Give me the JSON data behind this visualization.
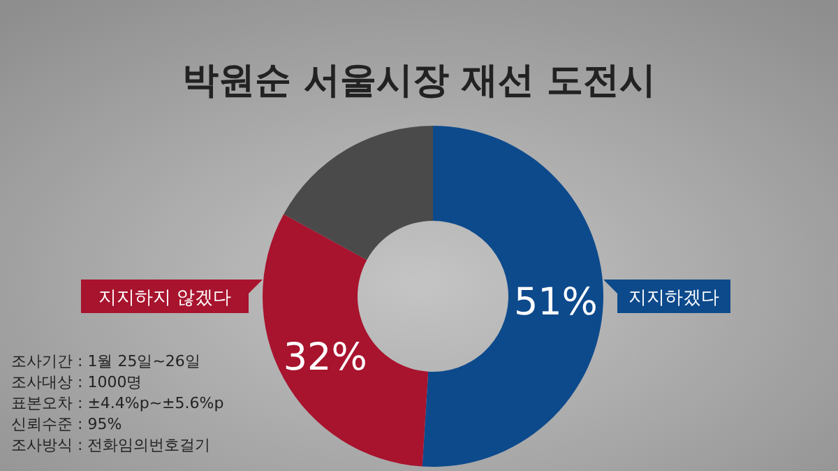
{
  "chart_data": {
    "type": "donut",
    "title": "박원순 서울시장 재선 도전시",
    "categories": [
      "지지하겠다",
      "지지하지 않겠다",
      null
    ],
    "values": [
      51,
      32,
      17
    ],
    "colors": [
      "#0d4a8c",
      "#a8132e",
      "#4a4a4a"
    ],
    "value_labels": [
      "51%",
      "32%",
      null
    ],
    "annotations": [
      "조사기간 : 1월 25일~26일",
      "조사대상 : 1000명",
      "표본오차 : ±4.4%p~±5.6%p",
      "신뢰수준 : 95%",
      "조사방식 : 전화임의번호걸기"
    ]
  }
}
